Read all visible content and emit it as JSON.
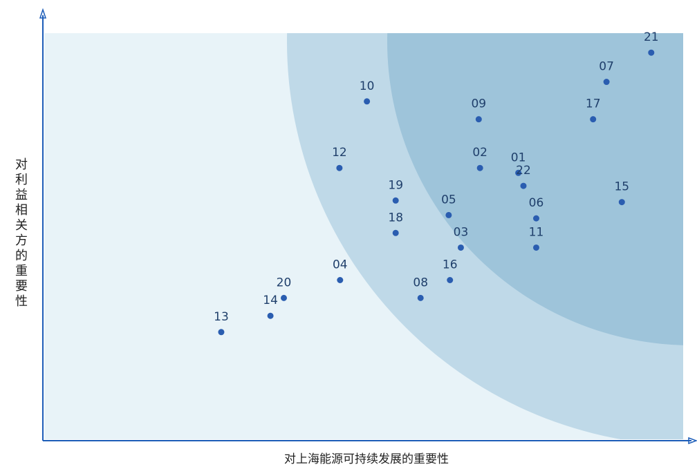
{
  "chart_data": {
    "type": "scatter",
    "title": "",
    "xlabel": "对上海能源可持续发展的重要性",
    "ylabel": "对利益相关方的重要性",
    "grid": false,
    "points": [
      {
        "label": "01",
        "x": 0.742,
        "y": 0.656
      },
      {
        "label": "02",
        "x": 0.682,
        "y": 0.668
      },
      {
        "label": "03",
        "x": 0.652,
        "y": 0.472
      },
      {
        "label": "04",
        "x": 0.463,
        "y": 0.392
      },
      {
        "label": "05",
        "x": 0.633,
        "y": 0.552
      },
      {
        "label": "06",
        "x": 0.77,
        "y": 0.544
      },
      {
        "label": "07",
        "x": 0.88,
        "y": 0.88
      },
      {
        "label": "08",
        "x": 0.589,
        "y": 0.348
      },
      {
        "label": "09",
        "x": 0.68,
        "y": 0.788
      },
      {
        "label": "10",
        "x": 0.505,
        "y": 0.832
      },
      {
        "label": "11",
        "x": 0.77,
        "y": 0.472
      },
      {
        "label": "12",
        "x": 0.462,
        "y": 0.668
      },
      {
        "label": "13",
        "x": 0.277,
        "y": 0.264
      },
      {
        "label": "14",
        "x": 0.354,
        "y": 0.304
      },
      {
        "label": "15",
        "x": 0.904,
        "y": 0.584
      },
      {
        "label": "16",
        "x": 0.635,
        "y": 0.392
      },
      {
        "label": "17",
        "x": 0.859,
        "y": 0.788
      },
      {
        "label": "18",
        "x": 0.55,
        "y": 0.508
      },
      {
        "label": "19",
        "x": 0.55,
        "y": 0.588
      },
      {
        "label": "20",
        "x": 0.375,
        "y": 0.348
      },
      {
        "label": "21",
        "x": 0.95,
        "y": 0.952
      },
      {
        "label": "22",
        "x": 0.75,
        "y": 0.624
      }
    ]
  }
}
